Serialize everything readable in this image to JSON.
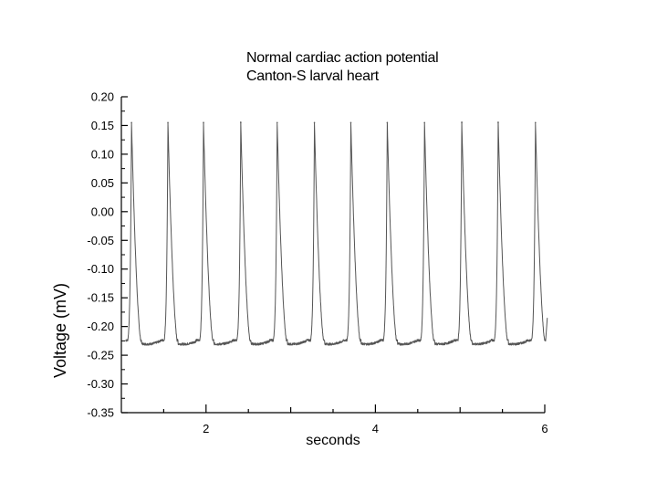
{
  "chart_data": {
    "type": "line",
    "title_lines": [
      "Normal cardiac action potential",
      "Canton-S larval heart"
    ],
    "xlabel": "seconds",
    "ylabel": "Voltage (mV)",
    "xlim": [
      1.0,
      6.0
    ],
    "ylim": [
      -0.35,
      0.2
    ],
    "x_ticks": [
      2,
      4,
      6
    ],
    "x_tick_labels": [
      "2",
      "4",
      "6"
    ],
    "y_ticks": [
      0.2,
      0.15,
      0.1,
      0.05,
      0.0,
      -0.05,
      -0.1,
      -0.15,
      -0.2,
      -0.25,
      -0.3,
      -0.35
    ],
    "y_tick_labels": [
      "0.20",
      "0.15",
      "0.10",
      "0.05",
      "0.00",
      "-0.05",
      "-0.10",
      "-0.15",
      "-0.20",
      "-0.25",
      "-0.30",
      "-0.35"
    ],
    "grid": false,
    "series": [
      {
        "color": "#555555",
        "baseline": -0.23,
        "peak_value": 0.155,
        "peak_times": [
          1.12,
          1.55,
          1.97,
          2.41,
          2.84,
          3.28,
          3.71,
          4.14,
          4.58,
          5.02,
          5.45,
          5.89
        ],
        "end_value": -0.185
      }
    ]
  }
}
